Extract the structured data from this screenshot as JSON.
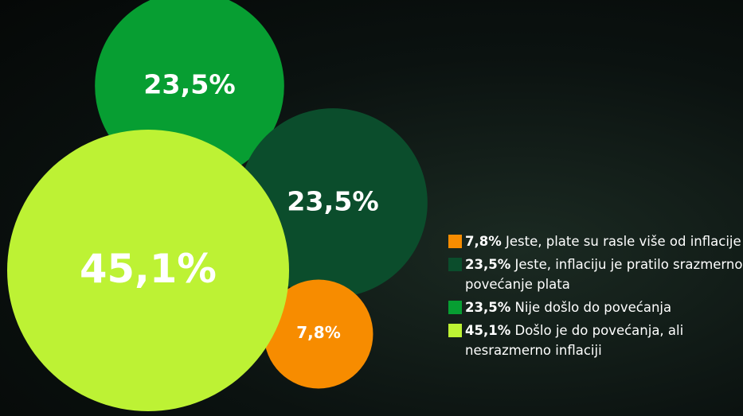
{
  "chart_data": {
    "type": "bubble",
    "categories": [
      "Jeste, plate su rasle više od inflacije",
      "Jeste, inflaciju je pratilo srazmerno povećanje plata",
      "Nije došlo do povećanja",
      "Došlo je do povećanja, ali nesrazmerno inflaciji"
    ],
    "values": [
      7.8,
      23.5,
      23.5,
      45.1
    ],
    "value_labels": [
      "7,8%",
      "23,5%",
      "23,5%",
      "45,1%"
    ],
    "colors": [
      "#f78c00",
      "#0b4d2c",
      "#079e32",
      "#bdf234"
    ]
  }
}
